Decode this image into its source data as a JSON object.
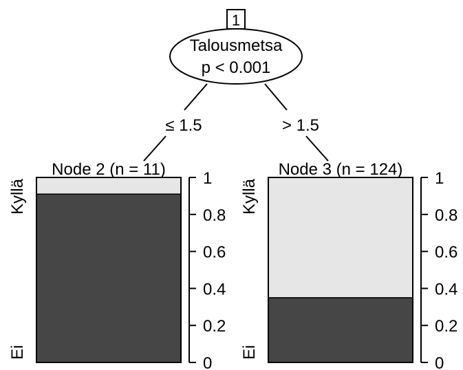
{
  "root": {
    "id": "1",
    "variable": "Talousmetsa",
    "pvalue": "p < 0.001"
  },
  "edges": {
    "left": "≤ 1.5",
    "right": "> 1.5"
  },
  "chart_data": [
    {
      "type": "bar",
      "title": "Node 2 (n = 11)",
      "categories": [
        "Ei",
        "Kyllä"
      ],
      "values": [
        0.91,
        0.09
      ],
      "ylim": [
        0,
        1
      ],
      "yticks": [
        "0",
        "0.2",
        "0.4",
        "0.6",
        "0.8",
        "1"
      ],
      "colors": {
        "Ei": "#464646",
        "Kyllä": "#e6e6e6"
      }
    },
    {
      "type": "bar",
      "title": "Node 3 (n = 124)",
      "categories": [
        "Ei",
        "Kyllä"
      ],
      "values": [
        0.35,
        0.65
      ],
      "ylim": [
        0,
        1
      ],
      "yticks": [
        "0",
        "0.2",
        "0.4",
        "0.6",
        "0.8",
        "1"
      ],
      "colors": {
        "Ei": "#464646",
        "Kyllä": "#e6e6e6"
      }
    }
  ]
}
